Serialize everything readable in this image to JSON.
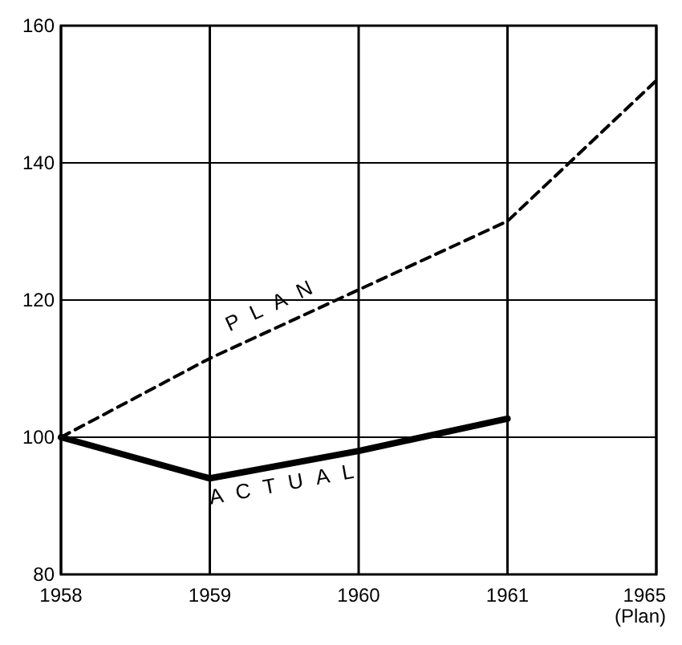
{
  "chart_data": {
    "type": "line",
    "categories": [
      "1958",
      "1959",
      "1960",
      "1961",
      "1965 (Plan)"
    ],
    "series": [
      {
        "name": "PLAN",
        "color": "#000000",
        "line_style": "dashed",
        "values": [
          100,
          111.5,
          121.5,
          131.5,
          152
        ]
      },
      {
        "name": "ACTUAL",
        "color": "#000000",
        "line_style": "solid",
        "values": [
          100,
          94,
          98,
          102.7,
          null
        ]
      }
    ],
    "ylim": [
      80,
      160
    ],
    "yticks": [
      80,
      100,
      120,
      140,
      160
    ],
    "grid": true,
    "marker": "none"
  }
}
